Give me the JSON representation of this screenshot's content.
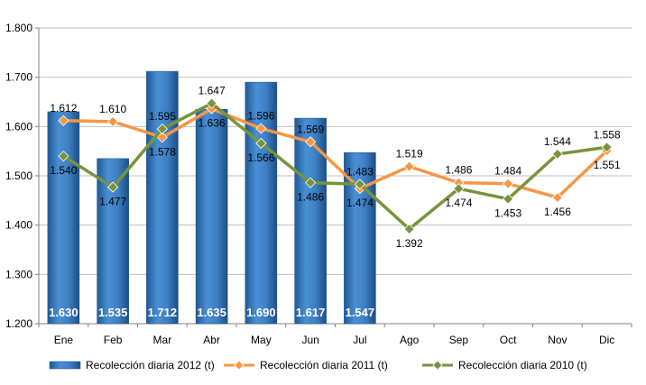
{
  "chart_data": {
    "type": "bar",
    "categories": [
      "Ene",
      "Feb",
      "Mar",
      "Abr",
      "May",
      "Jun",
      "Jul",
      "Ago",
      "Sep",
      "Oct",
      "Nov",
      "Dic"
    ],
    "ylim": [
      1200,
      1800
    ],
    "yticks": [
      1200,
      1300,
      1400,
      1500,
      1600,
      1700,
      1800
    ],
    "ytick_labels": [
      "1.200",
      "1.300",
      "1.400",
      "1.500",
      "1.600",
      "1.700",
      "1.800"
    ],
    "grid": "horizontal",
    "legend_position": "bottom",
    "series": [
      {
        "name": "Recolección diaria  2012 (t)",
        "kind": "bar",
        "color": "#2E75B6",
        "values": [
          1630,
          1535,
          1712,
          1635,
          1690,
          1617,
          1547,
          null,
          null,
          null,
          null,
          null
        ],
        "labels": [
          "1.630",
          "1.535",
          "1.712",
          "1.635",
          "1.690",
          "1.617",
          "1.547",
          "",
          "",
          "",
          "",
          ""
        ]
      },
      {
        "name": "Recolección diaria  2011 (t)",
        "kind": "line",
        "color": "#F79646",
        "values": [
          1612,
          1610,
          1578,
          1636,
          1596,
          1569,
          1474,
          1519,
          1486,
          1484,
          1456,
          1551
        ],
        "labels": [
          "1.612",
          "1.610",
          "1.578",
          "1.636",
          "1.596",
          "1.569",
          "1.474",
          "1.519",
          "1.486",
          "1.484",
          "1.456",
          "1.551"
        ]
      },
      {
        "name": "Recolección diaria  2010 (t)",
        "kind": "line",
        "color": "#77933C",
        "values": [
          1540,
          1477,
          1595,
          1647,
          1566,
          1486,
          1483,
          1392,
          1474,
          1453,
          1544,
          1558
        ],
        "labels": [
          "1.540",
          "1.477",
          "1.595",
          "1.647",
          "1.566",
          "1.486",
          "1.483",
          "1.392",
          "1.474",
          "1.453",
          "1.544",
          "1.558"
        ]
      }
    ]
  }
}
